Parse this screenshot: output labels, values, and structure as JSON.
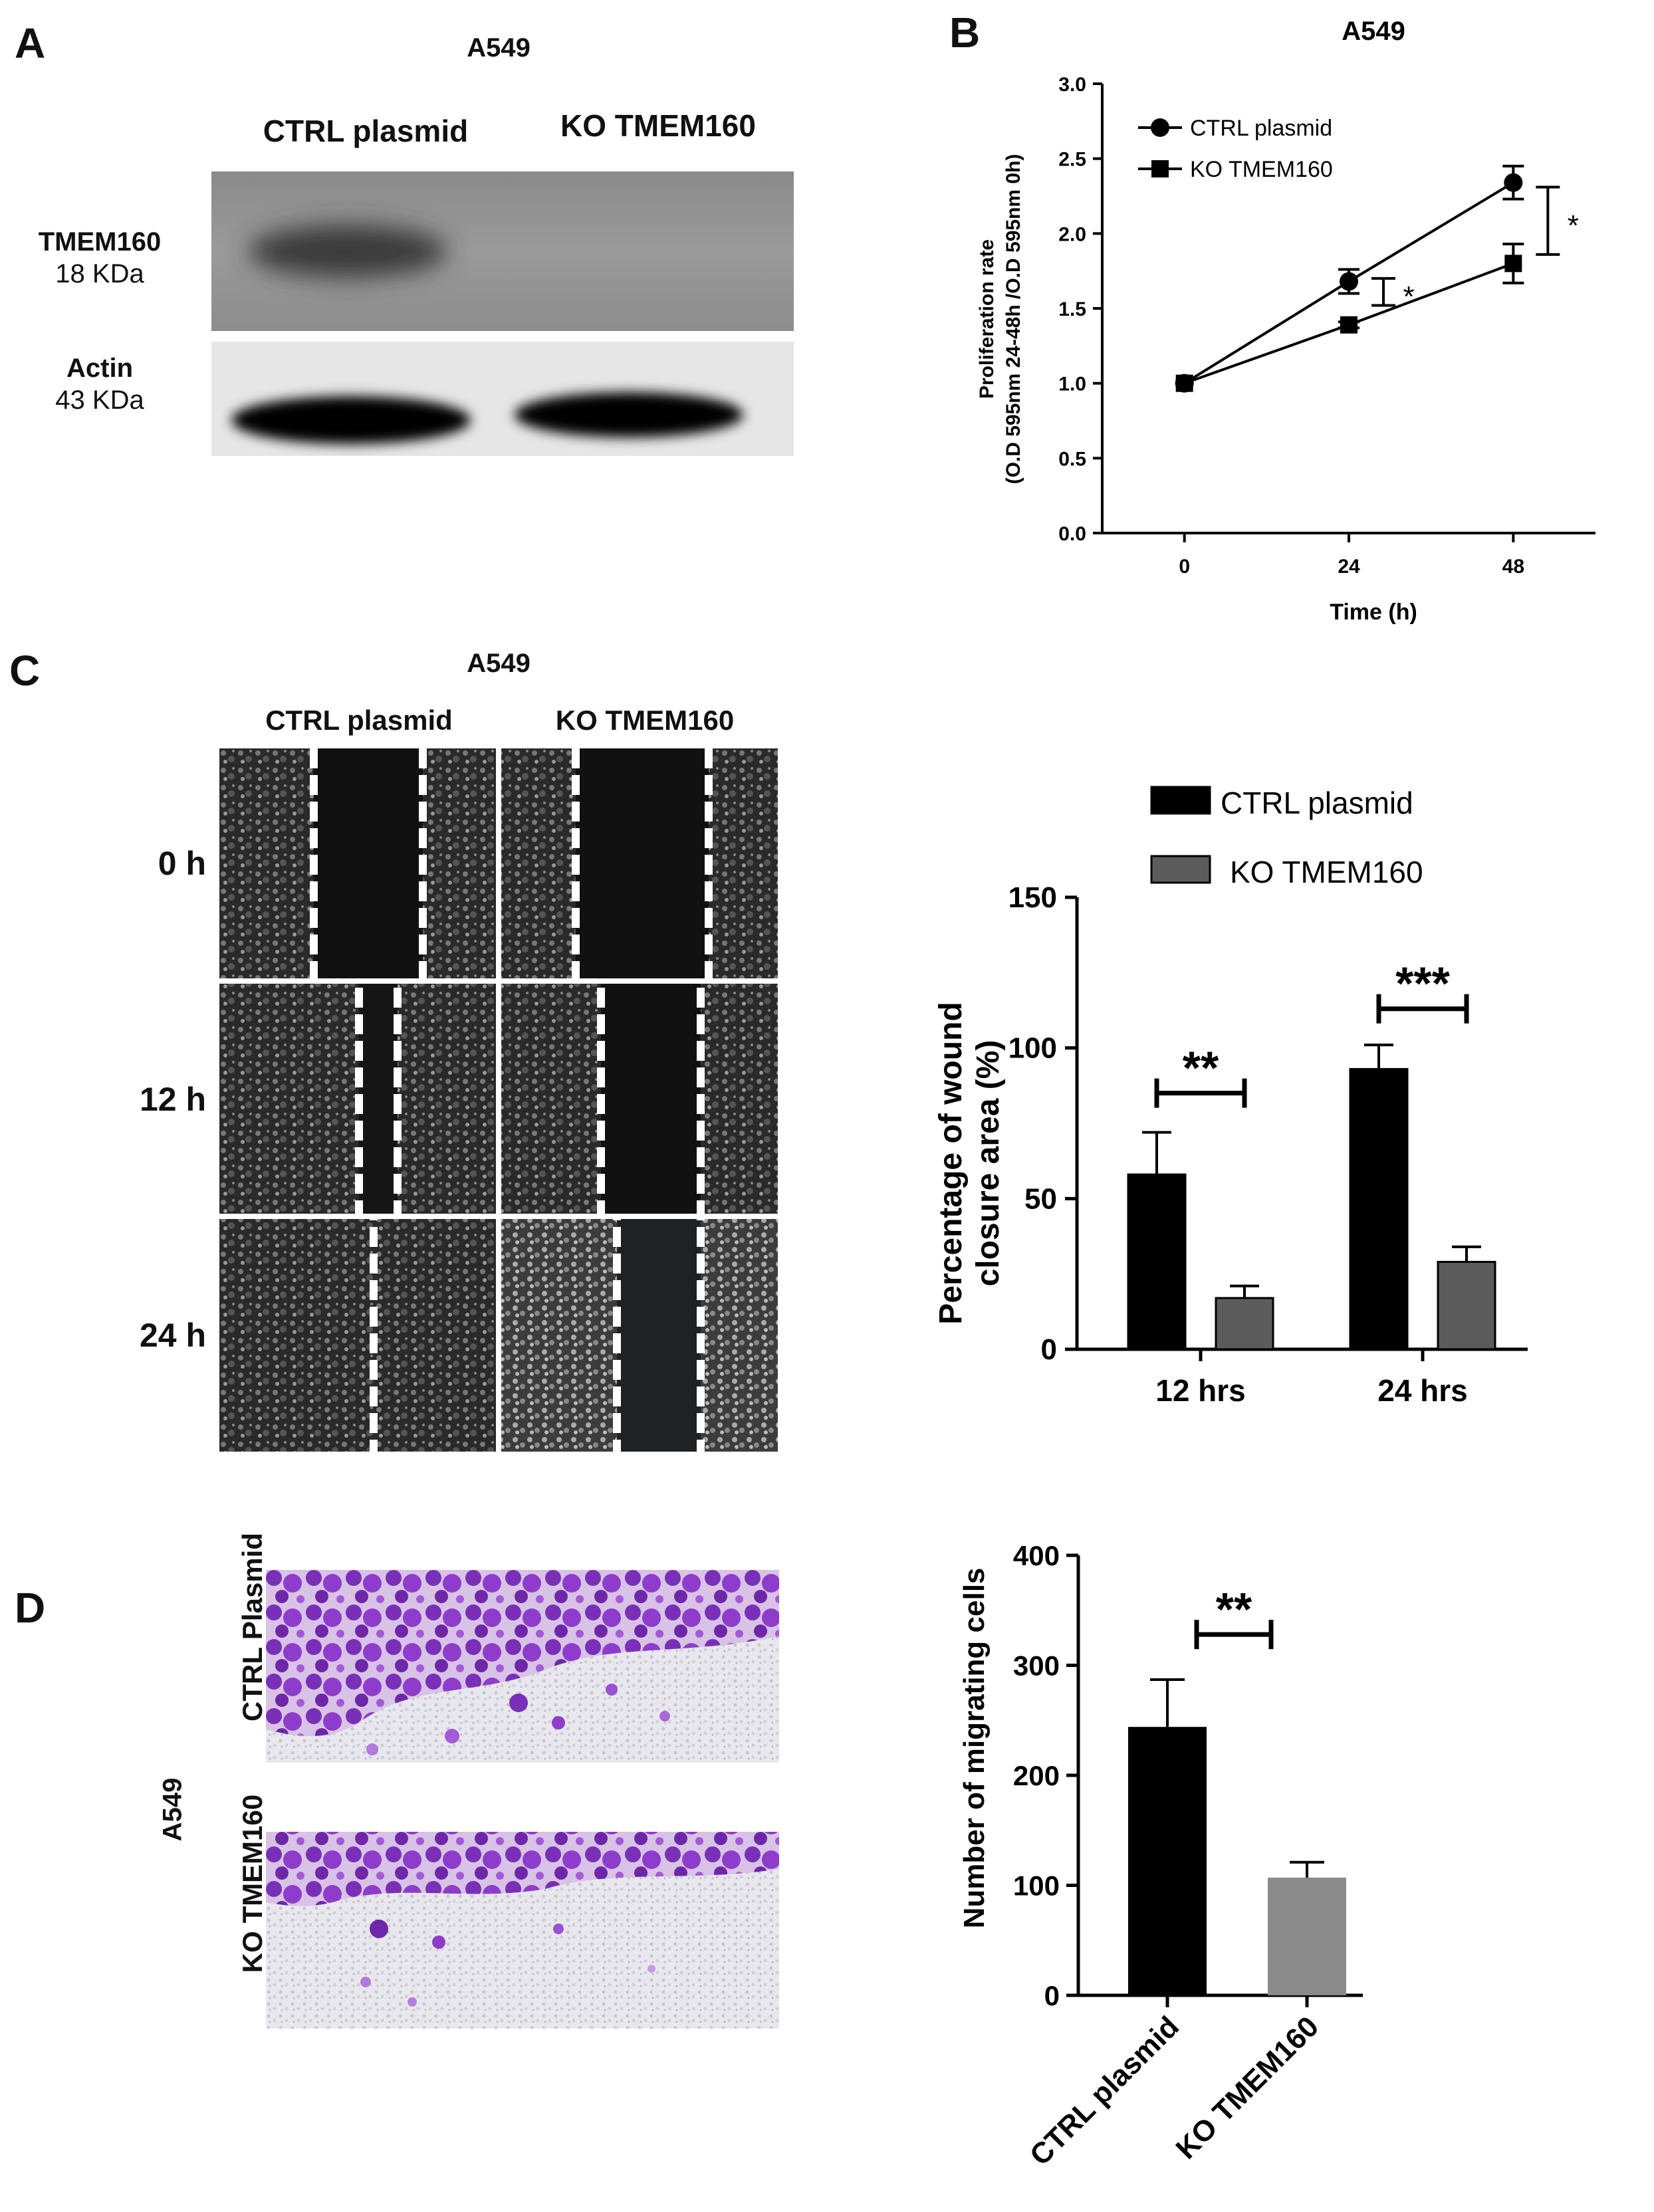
{
  "panel_a": {
    "letter": "A",
    "title": "A549",
    "col_ctrl": "CTRL plasmid",
    "col_ko": "KO TMEM160",
    "band1_name": "TMEM160",
    "band1_size": "18 KDa",
    "band2_name": "Actin",
    "band2_size": "43 KDa"
  },
  "panel_b": {
    "letter": "B"
  },
  "panel_c": {
    "letter": "C",
    "title": "A549",
    "col_ctrl": "CTRL plasmid",
    "col_ko": "KO TMEM160",
    "rows": [
      "0 h",
      "12 h",
      "24 h"
    ]
  },
  "panel_d": {
    "letter": "D",
    "side_label": "A549",
    "row_ctrl": "CTRL Plasmid",
    "row_ko": "KO TMEM160"
  },
  "chart_data": [
    {
      "id": "proliferation",
      "type": "line",
      "title": "A549",
      "xlabel": "Time (h)",
      "ylabel_line1": "Proliferation rate",
      "ylabel_line2": "(O.D 595nm 24-48h /O.D 595nm 0h)",
      "x": [
        0,
        24,
        48
      ],
      "x_ticks": [
        "0",
        "24",
        "48"
      ],
      "ylim": [
        0,
        3.0
      ],
      "y_ticks": [
        "0.0",
        "0.5",
        "1.0",
        "1.5",
        "2.0",
        "2.5",
        "3.0"
      ],
      "legend_position": "top-left",
      "series": [
        {
          "name": "CTRL plasmid",
          "marker": "circle",
          "values": [
            1.0,
            1.68,
            2.34
          ],
          "errors": [
            0,
            0.08,
            0.11
          ]
        },
        {
          "name": "KO TMEM160",
          "marker": "square",
          "values": [
            1.0,
            1.39,
            1.8
          ],
          "errors": [
            0,
            0.02,
            0.13
          ]
        }
      ],
      "annotations": [
        {
          "text": "*",
          "x": 24
        },
        {
          "text": "*",
          "x": 48
        }
      ]
    },
    {
      "id": "wound_closure",
      "type": "bar",
      "ylabel_line1": "Percentage of wound",
      "ylabel_line2": "closure area (%)",
      "categories": [
        "12 hrs",
        "24 hrs"
      ],
      "ylim": [
        0,
        150
      ],
      "y_ticks": [
        "0",
        "50",
        "100",
        "150"
      ],
      "legend_position": "top",
      "series": [
        {
          "name": "CTRL plasmid",
          "color": "#000000",
          "values": [
            58,
            93
          ],
          "errors": [
            14,
            8
          ]
        },
        {
          "name": "KO TMEM160",
          "color": "#5c5c5c",
          "values": [
            17,
            29
          ],
          "errors": [
            4,
            5
          ]
        }
      ],
      "annotations": [
        {
          "text": "**",
          "category": "12 hrs"
        },
        {
          "text": "***",
          "category": "24 hrs"
        }
      ]
    },
    {
      "id": "migration",
      "type": "bar",
      "ylabel": "Number of migrating cells",
      "categories": [
        "CTRL plasmid",
        "KO TMEM160"
      ],
      "ylim": [
        0,
        400
      ],
      "y_ticks": [
        "0",
        "100",
        "200",
        "300",
        "400"
      ],
      "colors": [
        "#000000",
        "#8a8a8a"
      ],
      "values": [
        244,
        107
      ],
      "errors": [
        43,
        14
      ],
      "annotations": [
        {
          "text": "**"
        }
      ]
    }
  ]
}
